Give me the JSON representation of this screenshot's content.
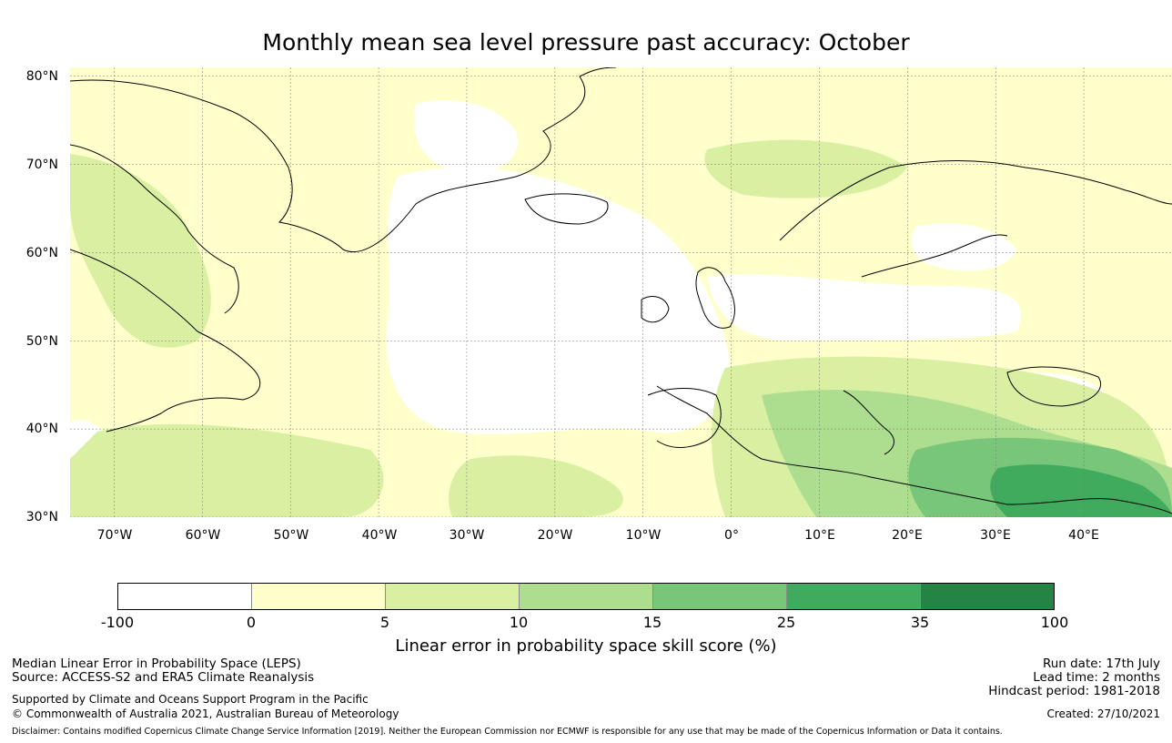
{
  "title": "Monthly mean sea level pressure past accuracy: October",
  "map": {
    "lon_range": [
      -75,
      50
    ],
    "lat_range": [
      30,
      81
    ],
    "lat_ticks": [
      80,
      70,
      60,
      50,
      40,
      30
    ],
    "lat_labels": [
      "80°N",
      "70°N",
      "60°N",
      "50°N",
      "40°N",
      "30°N"
    ],
    "lon_ticks": [
      -70,
      -60,
      -50,
      -40,
      -30,
      -20,
      -10,
      0,
      10,
      20,
      30,
      40
    ],
    "lon_labels": [
      "70°W",
      "60°W",
      "50°W",
      "40°W",
      "30°W",
      "20°W",
      "10°W",
      "0°",
      "10°E",
      "20°E",
      "30°E",
      "40°E"
    ],
    "gridlines": true,
    "coastline_color": "#000000"
  },
  "colorbar": {
    "boundaries": [
      "-100",
      "0",
      "5",
      "10",
      "15",
      "25",
      "35",
      "100"
    ],
    "colors": [
      "#ffffff",
      "#ffffcc",
      "#d9f0a3",
      "#addd8e",
      "#78c679",
      "#41ab5d",
      "#238443"
    ],
    "label": "Linear error in probability space skill score (%)"
  },
  "footer": {
    "left1": "Median Linear Error in Probability Space (LEPS)",
    "left2": "Source: ACCESS-S2 and ERA5 Climate Reanalysis",
    "left3": "Supported by Climate and Oceans Support Program in the Pacific",
    "left4": "© Commonwealth of Australia 2021, Australian Bureau of Meteorology",
    "right1": "Run date: 17th July",
    "right2": "Lead time: 2 months",
    "right3": "Hindcast period: 1981-2018",
    "right4": "Created: 27/10/2021",
    "disclaimer": "Disclaimer: Contains modified Copernicus Climate Change Service Information [2019]. Neither the European Commission nor ECMWF is responsible for any use that may be made of the Copernicus Information or Data it contains."
  }
}
